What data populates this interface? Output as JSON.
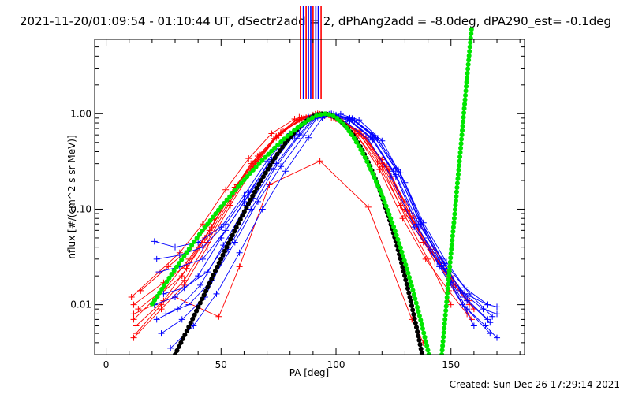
{
  "header": {
    "title": "2021-11-20/01:09:54 - 01:10:44 UT, dSectr2add = 2, dPhAng2add = -8.0deg, dPA290_est= -0.1deg"
  },
  "footer": {
    "created": "Created: Sun Dec 26 17:29:14 2021"
  },
  "chart_data": {
    "type": "line",
    "xlabel": "PA [deg]",
    "ylabel": "nflux [#/(cm^2 s sr MeV)]",
    "xlim": [
      -5,
      182
    ],
    "ylim": [
      0.003,
      6.0
    ],
    "yscale": "log",
    "xticks": [
      0,
      50,
      100,
      150
    ],
    "xtick_labels": [
      "0",
      "50",
      "100",
      "150"
    ],
    "yticks": [
      0.01,
      0.1,
      1.0
    ],
    "ytick_labels": [
      "0.01",
      "0.10",
      "1.00"
    ],
    "grid": false,
    "legend": "none",
    "colors": {
      "red": "#ff0000",
      "blue": "#0000ff",
      "black": "#000000",
      "green": "#00e600"
    },
    "vertical_markers": [
      {
        "x": 84.5,
        "color": "#ff0000"
      },
      {
        "x": 85.8,
        "color": "#0000ff"
      },
      {
        "x": 87.0,
        "color": "#ff0000"
      },
      {
        "x": 88.0,
        "color": "#0000ff"
      },
      {
        "x": 89.0,
        "color": "#0000ff"
      },
      {
        "x": 90.0,
        "color": "#ff0000"
      },
      {
        "x": 91.2,
        "color": "#0000ff"
      },
      {
        "x": 92.3,
        "color": "#0000ff"
      },
      {
        "x": 93.5,
        "color": "#ff0000"
      }
    ],
    "series": [
      {
        "color": "#ff0000",
        "x": [
          12,
          25,
          35,
          45,
          55,
          65,
          75,
          85,
          93,
          100,
          110,
          120,
          130,
          140,
          150,
          158
        ],
        "y": [
          0.01,
          0.017,
          0.026,
          0.06,
          0.15,
          0.32,
          0.6,
          0.9,
          0.98,
          0.88,
          0.62,
          0.3,
          0.1,
          0.04,
          0.018,
          0.01
        ]
      },
      {
        "color": "#ff0000",
        "x": [
          12,
          22,
          33,
          43,
          53,
          63,
          73,
          83,
          91,
          99,
          109,
          119,
          129,
          139,
          149,
          157
        ],
        "y": [
          0.007,
          0.012,
          0.02,
          0.05,
          0.13,
          0.3,
          0.55,
          0.86,
          0.99,
          0.9,
          0.6,
          0.26,
          0.08,
          0.03,
          0.014,
          0.008
        ]
      },
      {
        "color": "#ff0000",
        "x": [
          13,
          24,
          34,
          44,
          54,
          64,
          74,
          84,
          92,
          100,
          110,
          120,
          130,
          140,
          150,
          158
        ],
        "y": [
          0.005,
          0.01,
          0.018,
          0.045,
          0.12,
          0.28,
          0.58,
          0.92,
          1.0,
          0.93,
          0.66,
          0.33,
          0.12,
          0.05,
          0.02,
          0.011
        ]
      },
      {
        "color": "#ff0000",
        "x": [
          11,
          23,
          32,
          42,
          52,
          62,
          72,
          82,
          90,
          98,
          108,
          118,
          128,
          138,
          148,
          156
        ],
        "y": [
          0.012,
          0.022,
          0.035,
          0.07,
          0.16,
          0.34,
          0.62,
          0.88,
          0.97,
          0.91,
          0.64,
          0.31,
          0.11,
          0.045,
          0.022,
          0.013
        ]
      },
      {
        "color": "#ff0000",
        "x": [
          14,
          26,
          36,
          46,
          56,
          66,
          76,
          86,
          94,
          102,
          112,
          122,
          132,
          142,
          152,
          160
        ],
        "y": [
          0.009,
          0.015,
          0.03,
          0.065,
          0.17,
          0.36,
          0.64,
          0.9,
          0.96,
          0.85,
          0.58,
          0.28,
          0.09,
          0.035,
          0.016,
          0.009
        ]
      },
      {
        "color": "#ff0000",
        "x": [
          13,
          25,
          35,
          45,
          55,
          65,
          75,
          85,
          93,
          101,
          111,
          121,
          131,
          141,
          151,
          159
        ],
        "y": [
          0.006,
          0.011,
          0.024,
          0.055,
          0.14,
          0.31,
          0.59,
          0.89,
          0.99,
          0.89,
          0.61,
          0.29,
          0.095,
          0.038,
          0.015,
          0.007
        ]
      },
      {
        "color": "#ff0000",
        "x": [
          12,
          24,
          34,
          44,
          54,
          64,
          74,
          84,
          92,
          100,
          110,
          120,
          130,
          140,
          150
        ],
        "y": [
          0.0045,
          0.009,
          0.016,
          0.04,
          0.11,
          0.27,
          0.56,
          0.87,
          0.98,
          0.9,
          0.62,
          0.28,
          0.085,
          0.03,
          0.01
        ]
      },
      {
        "color": "#ff0000",
        "x": [
          15,
          27,
          37,
          47,
          57,
          67,
          77,
          87,
          95,
          103,
          113,
          123,
          133,
          143
        ],
        "y": [
          0.014,
          0.025,
          0.04,
          0.08,
          0.18,
          0.37,
          0.66,
          0.91,
          0.95,
          0.84,
          0.56,
          0.26,
          0.08,
          0.028
        ]
      },
      {
        "color": "#ff0000",
        "x": [
          12,
          21,
          30,
          49,
          58,
          71,
          93,
          114,
          133,
          138
        ],
        "y": [
          0.008,
          0.01,
          0.012,
          0.0075,
          0.025,
          0.18,
          0.32,
          0.105,
          0.007,
          0.004
        ]
      },
      {
        "color": "#0000ff",
        "x": [
          21,
          30,
          40,
          50,
          60,
          70,
          80,
          88,
          96,
          104,
          114,
          124,
          134,
          144,
          154,
          164,
          170
        ],
        "y": [
          0.046,
          0.04,
          0.045,
          0.065,
          0.14,
          0.32,
          0.62,
          0.92,
          0.97,
          0.83,
          0.54,
          0.22,
          0.065,
          0.028,
          0.014,
          0.009,
          0.008
        ]
      },
      {
        "color": "#0000ff",
        "x": [
          21,
          30,
          40,
          50,
          60,
          70,
          80,
          89,
          97,
          105,
          115,
          125,
          135,
          145,
          155,
          165,
          170
        ],
        "y": [
          0.01,
          0.012,
          0.02,
          0.05,
          0.12,
          0.29,
          0.58,
          0.9,
          0.99,
          0.88,
          0.57,
          0.25,
          0.07,
          0.025,
          0.01,
          0.006,
          0.0045
        ]
      },
      {
        "color": "#0000ff",
        "x": [
          22,
          31,
          41,
          51,
          61,
          71,
          81,
          90,
          98,
          106,
          116,
          126,
          136,
          146,
          156,
          166
        ],
        "y": [
          0.007,
          0.009,
          0.016,
          0.042,
          0.11,
          0.27,
          0.57,
          0.91,
          1.0,
          0.9,
          0.6,
          0.27,
          0.08,
          0.03,
          0.012,
          0.007
        ]
      },
      {
        "color": "#0000ff",
        "x": [
          23,
          32,
          42,
          52,
          62,
          72,
          82,
          90,
          98,
          106,
          116,
          126,
          136,
          146,
          156,
          166
        ],
        "y": [
          0.022,
          0.025,
          0.03,
          0.06,
          0.14,
          0.31,
          0.6,
          0.92,
          0.98,
          0.86,
          0.55,
          0.23,
          0.07,
          0.03,
          0.015,
          0.01
        ]
      },
      {
        "color": "#0000ff",
        "x": [
          24,
          33,
          43,
          53,
          63,
          73,
          83,
          91,
          99,
          107,
          117,
          127,
          137,
          147,
          157,
          167
        ],
        "y": [
          0.005,
          0.007,
          0.012,
          0.038,
          0.1,
          0.26,
          0.55,
          0.89,
          0.98,
          0.89,
          0.59,
          0.26,
          0.075,
          0.027,
          0.011,
          0.0065
        ]
      },
      {
        "color": "#0000ff",
        "x": [
          25,
          34,
          44,
          54,
          64,
          74,
          84,
          91,
          99,
          107,
          117,
          127,
          137,
          147,
          157,
          167
        ],
        "y": [
          0.013,
          0.015,
          0.022,
          0.05,
          0.13,
          0.3,
          0.61,
          0.93,
          0.99,
          0.87,
          0.56,
          0.24,
          0.068,
          0.024,
          0.009,
          0.005
        ]
      },
      {
        "color": "#0000ff",
        "x": [
          26,
          36,
          46,
          56,
          66,
          76,
          86,
          92,
          100,
          108,
          118,
          128,
          138,
          148,
          158,
          168
        ],
        "y": [
          0.008,
          0.01,
          0.018,
          0.045,
          0.12,
          0.28,
          0.59,
          0.92,
          0.97,
          0.85,
          0.55,
          0.24,
          0.072,
          0.028,
          0.013,
          0.0075
        ]
      },
      {
        "color": "#0000ff",
        "x": [
          22,
          32,
          42,
          52,
          62,
          72,
          82,
          90,
          98,
          106,
          116,
          126,
          136,
          146,
          156,
          166,
          170
        ],
        "y": [
          0.03,
          0.033,
          0.04,
          0.07,
          0.15,
          0.33,
          0.63,
          0.91,
          0.96,
          0.84,
          0.53,
          0.22,
          0.062,
          0.026,
          0.013,
          0.01,
          0.0095
        ]
      },
      {
        "color": "#0000ff",
        "x": [
          28,
          38,
          48,
          58,
          68,
          78,
          88,
          94,
          102,
          110,
          120,
          130,
          140,
          150,
          160
        ],
        "y": [
          0.0035,
          0.006,
          0.013,
          0.035,
          0.1,
          0.25,
          0.56,
          0.9,
          0.99,
          0.86,
          0.52,
          0.19,
          0.05,
          0.017,
          0.006
        ]
      }
    ],
    "fits": [
      {
        "color": "#000000",
        "x": [
          30,
          33,
          36,
          39,
          42,
          45,
          48,
          51,
          54,
          57,
          60,
          63,
          66,
          69,
          72,
          75,
          78,
          81,
          84,
          87,
          90,
          93,
          96,
          99,
          102,
          105,
          108,
          111,
          114,
          117,
          120,
          123,
          126,
          129,
          132,
          135,
          138,
          141
        ],
        "y": [
          0.003,
          0.0042,
          0.0059,
          0.0083,
          0.0118,
          0.0167,
          0.024,
          0.034,
          0.048,
          0.067,
          0.093,
          0.128,
          0.174,
          0.232,
          0.305,
          0.393,
          0.494,
          0.604,
          0.722,
          0.838,
          0.941,
          1.0,
          0.996,
          0.936,
          0.836,
          0.711,
          0.573,
          0.436,
          0.313,
          0.212,
          0.136,
          0.082,
          0.046,
          0.0246,
          0.0123,
          0.0058,
          0.0026,
          0.0011
        ]
      },
      {
        "color": "#00e600",
        "x": [
          20,
          23,
          26,
          29,
          32,
          35,
          38,
          41,
          44,
          47,
          50,
          53,
          56,
          59,
          62,
          65,
          68,
          71,
          74,
          77,
          80,
          83,
          86,
          89,
          92,
          95,
          98,
          101,
          104,
          107,
          110,
          113,
          116,
          119,
          122,
          125,
          128,
          131,
          134,
          137,
          140,
          143
        ],
        "y": [
          0.0102,
          0.0131,
          0.0169,
          0.0217,
          0.0277,
          0.0352,
          0.0444,
          0.056,
          0.069,
          0.086,
          0.106,
          0.129,
          0.157,
          0.19,
          0.229,
          0.274,
          0.326,
          0.386,
          0.455,
          0.532,
          0.616,
          0.706,
          0.8,
          0.891,
          0.966,
          1.0,
          0.973,
          0.88,
          0.744,
          0.594,
          0.454,
          0.334,
          0.236,
          0.16,
          0.105,
          0.066,
          0.04,
          0.023,
          0.0126,
          0.0066,
          0.0033,
          0.0016
        ]
      },
      {
        "color": "#00e600",
        "x": [
          146,
          147,
          148,
          149,
          150,
          151,
          152,
          153,
          154,
          155,
          156,
          157,
          158,
          159
        ],
        "y": [
          0.003,
          0.0055,
          0.01,
          0.0185,
          0.034,
          0.062,
          0.114,
          0.21,
          0.38,
          0.7,
          1.3,
          2.4,
          4.4,
          8.0
        ]
      }
    ]
  }
}
